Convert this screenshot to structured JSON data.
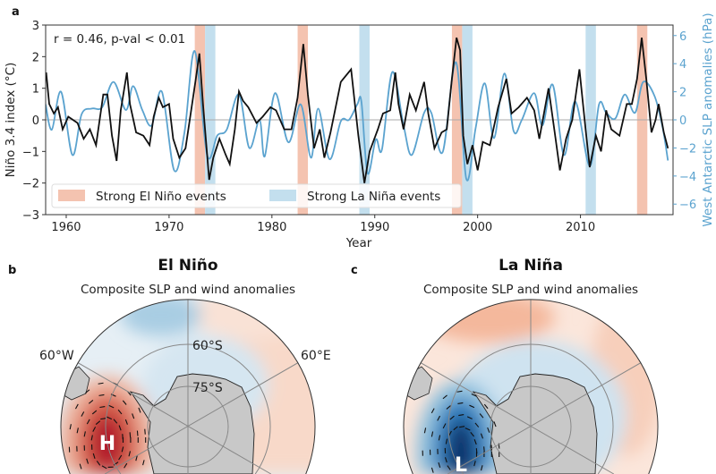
{
  "chart_data": [
    {
      "type": "line",
      "panel_label": "a",
      "annotation": "r = 0.46, p-val < 0.01",
      "xlabel": "Year",
      "ylabel": "Niño 3.4 index (°C)",
      "ylabel_right": "West Antarctic SLP anomalies (hPa)",
      "xlim": [
        1958,
        2019
      ],
      "ylim": [
        -3,
        3
      ],
      "ylim_right": [
        -6.75,
        6.75
      ],
      "xticks": [
        1960,
        1970,
        1980,
        1990,
        2000,
        2010
      ],
      "yticks": [
        -3,
        -2,
        -1,
        0,
        1,
        2,
        3
      ],
      "yticks_right": [
        -6,
        -4,
        -2,
        0,
        2,
        4,
        6
      ],
      "zero_line": true,
      "grid": false,
      "legend": {
        "placement": "bottom-left",
        "entries": [
          "Strong El Niño events",
          "Strong La Niña events"
        ]
      },
      "colors": {
        "nino34": "#111111",
        "slp": "#5ba3cf",
        "el_nino_band": "#f4c3b0",
        "la_nina_band": "#c3dfee"
      },
      "el_nino_events": [
        [
          1972.5,
          1973.5
        ],
        [
          1982.5,
          1983.5
        ],
        [
          1997.5,
          1998.5
        ],
        [
          2015.5,
          2016.5
        ]
      ],
      "la_nina_events": [
        [
          1973.5,
          1974.5
        ],
        [
          1988.5,
          1989.5
        ],
        [
          1998.5,
          1999.5
        ],
        [
          2010.5,
          2011.5
        ]
      ],
      "series": [
        {
          "axis": "left",
          "x": [
            1958.05,
            1958.35,
            1958.8,
            1959.2,
            1959.65,
            1960.2,
            1961.1,
            1961.7,
            1962.3,
            1962.9,
            1963.6,
            1964.0,
            1964.45,
            1964.9,
            1965.3,
            1965.9,
            1966.2,
            1966.8,
            1967.5,
            1968.1,
            1968.5,
            1969.0,
            1969.4,
            1970.0,
            1970.4,
            1971.0,
            1971.6,
            1972.15,
            1972.6,
            1972.95,
            1973.3,
            1973.9,
            1974.3,
            1974.9,
            1975.5,
            1975.9,
            1976.4,
            1976.8,
            1977.2,
            1977.7,
            1978.5,
            1979.1,
            1979.85,
            1980.4,
            1981.2,
            1981.9,
            1982.5,
            1983.05,
            1983.5,
            1984.1,
            1984.65,
            1985.1,
            1985.7,
            1986.7,
            1987.7,
            1988.4,
            1989.0,
            1989.5,
            1990.3,
            1990.8,
            1991.5,
            1992.0,
            1992.3,
            1992.8,
            1993.4,
            1994.0,
            1994.8,
            1995.2,
            1995.8,
            1996.5,
            1997.0,
            1997.5,
            1997.95,
            1998.3,
            1998.6,
            1999.0,
            1999.5,
            2000.0,
            2000.5,
            2001.2,
            2002.0,
            2002.8,
            2003.3,
            2004.0,
            2004.8,
            2005.5,
            2006.0,
            2006.9,
            2007.5,
            2008.0,
            2008.6,
            2009.2,
            2009.9,
            2010.5,
            2010.9,
            2011.5,
            2012.0,
            2012.5,
            2013.0,
            2013.8,
            2014.5,
            2015.0,
            2015.5,
            2015.95,
            2016.4,
            2016.9,
            2017.3,
            2017.6,
            2018.1,
            2018.5
          ],
          "y": [
            1.5,
            0.5,
            0.2,
            0.4,
            -0.3,
            0.1,
            -0.1,
            -0.6,
            -0.3,
            -0.8,
            0.8,
            0.8,
            -0.5,
            -1.3,
            0.3,
            1.5,
            0.5,
            -0.4,
            -0.5,
            -0.8,
            0.1,
            0.7,
            0.4,
            0.5,
            -0.6,
            -1.2,
            -0.9,
            0.3,
            1.3,
            2.1,
            0.5,
            -1.9,
            -1.2,
            -0.6,
            -1.1,
            -1.4,
            -0.3,
            0.9,
            0.6,
            0.4,
            -0.1,
            0.1,
            0.4,
            0.3,
            -0.3,
            -0.3,
            0.7,
            2.4,
            0.8,
            -0.9,
            -0.3,
            -1.2,
            -0.4,
            1.2,
            1.6,
            -0.5,
            -2.0,
            -1.0,
            -0.3,
            0.2,
            0.3,
            1.5,
            0.5,
            -0.3,
            0.8,
            0.3,
            1.2,
            0.2,
            -0.9,
            -0.4,
            -0.3,
            1.3,
            2.6,
            2.2,
            -0.5,
            -1.4,
            -0.8,
            -1.6,
            -0.7,
            -0.8,
            0.4,
            1.3,
            0.2,
            0.4,
            0.7,
            0.3,
            -0.6,
            1.0,
            -0.4,
            -1.6,
            -0.6,
            0.0,
            1.6,
            -0.3,
            -1.5,
            -0.5,
            -1.0,
            0.3,
            -0.3,
            -0.5,
            0.5,
            0.5,
            1.3,
            2.6,
            1.3,
            -0.4,
            0.0,
            0.5,
            -0.4,
            -0.9
          ]
        },
        {
          "axis": "right",
          "x": [
            1958.0,
            1958.6,
            1959.5,
            1960.6,
            1961.5,
            1962.5,
            1963.5,
            1964.6,
            1965.8,
            1966.5,
            1967.4,
            1968.3,
            1969.3,
            1970.5,
            1971.5,
            1972.5,
            1973.7,
            1974.7,
            1975.6,
            1976.8,
            1977.8,
            1978.8,
            1979.3,
            1980.3,
            1981.6,
            1982.8,
            1983.8,
            1984.5,
            1985.6,
            1986.7,
            1987.5,
            1988.3,
            1988.7,
            1989.3,
            1990.1,
            1990.7,
            1991.7,
            1992.8,
            1993.6,
            1994.8,
            1995.5,
            1996.6,
            1997.9,
            1998.9,
            1999.8,
            2000.7,
            2001.6,
            2002.6,
            2003.5,
            2004.3,
            2005.5,
            2006.3,
            2007.3,
            2008.4,
            2009.5,
            2010.9,
            2011.8,
            2012.5,
            2013.4,
            2014.3,
            2015.3,
            2016.1,
            2017.2,
            2018.0,
            2018.5
          ],
          "y": [
            1.1,
            -0.7,
            2.0,
            -2.5,
            0.4,
            0.8,
            0.9,
            2.7,
            0.7,
            2.4,
            0.7,
            -0.4,
            2.0,
            -3.6,
            -0.9,
            4.9,
            -2.5,
            -1.1,
            -0.7,
            1.8,
            -2.0,
            0.0,
            -2.6,
            1.9,
            -1.6,
            1.1,
            -2.7,
            0.8,
            -2.8,
            -0.1,
            0.0,
            1.1,
            1.3,
            -3.8,
            -1.4,
            -2.1,
            3.4,
            -0.4,
            -2.5,
            0.5,
            0.5,
            -2.3,
            4.1,
            -4.2,
            -0.6,
            2.6,
            -1.3,
            3.3,
            -0.8,
            0.0,
            1.9,
            -0.4,
            2.5,
            -2.5,
            1.3,
            -3.3,
            1.1,
            0.5,
            0.1,
            1.8,
            0.5,
            2.7,
            1.7,
            -0.6,
            -2.9
          ]
        }
      ]
    }
  ],
  "maps": [
    {
      "panel_label": "b",
      "title": "El Niño",
      "subtitle": "Composite SLP and wind anomalies",
      "labels": {
        "lon_west": "60°W",
        "lat_60": "60°S",
        "lat_75": "75°S",
        "lon_east": "60°E"
      },
      "center_label": "H",
      "center_color": "#b2182b"
    },
    {
      "panel_label": "c",
      "title": "La Niña",
      "subtitle": "Composite SLP and wind anomalies",
      "center_label": "L",
      "center_color": "#08306b"
    }
  ]
}
